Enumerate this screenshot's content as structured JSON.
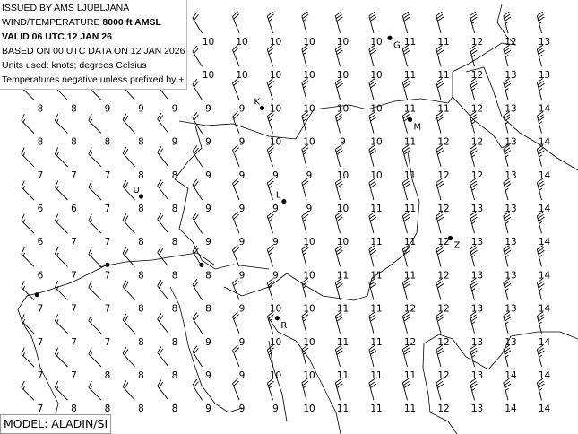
{
  "header": {
    "line1": "ISSUED BY AMS LJUBLJANA",
    "line2_prefix": "WIND/TEMPERATURE ",
    "line2_level": "8000 ft AMSL",
    "line3": "VALID 06 UTC 12 JAN 26",
    "line4": "BASED ON 00 UTC DATA ON 12 JAN 2026",
    "line5": "Units used: knots; degrees Celsius",
    "line6": "Temperatures negative unless prefixed by +"
  },
  "model_label": "MODEL: ALADIN/SI",
  "colors": {
    "ink": "#000000",
    "background": "#ffffff"
  },
  "temperature_grid": [
    [
      null,
      null,
      null,
      null,
      null,
      10,
      10,
      10,
      10,
      10,
      10,
      11,
      11,
      12,
      12,
      13
    ],
    [
      null,
      null,
      null,
      null,
      null,
      10,
      10,
      10,
      10,
      10,
      10,
      11,
      11,
      12,
      13,
      13
    ],
    [
      8,
      8,
      9,
      9,
      9,
      9,
      9,
      10,
      10,
      10,
      10,
      11,
      11,
      12,
      13,
      14
    ],
    [
      8,
      8,
      8,
      8,
      9,
      9,
      9,
      10,
      10,
      9,
      10,
      11,
      12,
      12,
      13,
      14
    ],
    [
      7,
      7,
      7,
      8,
      8,
      9,
      9,
      9,
      9,
      10,
      10,
      11,
      12,
      12,
      13,
      14
    ],
    [
      6,
      6,
      7,
      8,
      8,
      9,
      9,
      9,
      9,
      10,
      11,
      11,
      12,
      13,
      13,
      14
    ],
    [
      6,
      7,
      7,
      8,
      8,
      9,
      9,
      9,
      10,
      10,
      11,
      11,
      12,
      13,
      13,
      14
    ],
    [
      6,
      7,
      7,
      8,
      8,
      8,
      9,
      9,
      10,
      11,
      11,
      11,
      12,
      13,
      13,
      14
    ],
    [
      7,
      7,
      7,
      8,
      8,
      8,
      9,
      10,
      10,
      11,
      11,
      12,
      12,
      13,
      13,
      14
    ],
    [
      7,
      7,
      7,
      8,
      8,
      9,
      9,
      10,
      10,
      11,
      11,
      12,
      12,
      13,
      13,
      14
    ],
    [
      7,
      7,
      8,
      8,
      8,
      9,
      9,
      10,
      10,
      11,
      11,
      11,
      12,
      13,
      14,
      14
    ],
    [
      7,
      8,
      8,
      8,
      8,
      9,
      9,
      9,
      10,
      11,
      11,
      11,
      12,
      13,
      14,
      14
    ]
  ],
  "wind_by_column": {
    "direction_deg": [
      315,
      315,
      315,
      318,
      322,
      328,
      338,
      342,
      345,
      345,
      345,
      345,
      345,
      345,
      345,
      345
    ],
    "speed_kt": [
      15,
      15,
      15,
      20,
      20,
      20,
      20,
      25,
      25,
      30,
      30,
      30,
      30,
      35,
      35,
      35
    ]
  },
  "stations": [
    {
      "label": "G",
      "col": 10.4,
      "row": -0.1
    },
    {
      "label": "K",
      "col": 6.6,
      "row": 2.0
    },
    {
      "label": "M",
      "col": 11.0,
      "row": 2.35
    },
    {
      "label": "U",
      "col": 3.0,
      "row": 4.65
    },
    {
      "label": "L",
      "col": 7.25,
      "row": 4.8
    },
    {
      "label": "Z",
      "col": 12.2,
      "row": 5.9
    },
    {
      "label": "R",
      "col": 7.05,
      "row": 8.3
    },
    {
      "label": "",
      "col": 4.8,
      "row": 6.7
    },
    {
      "label": "",
      "col": 2.0,
      "row": 6.7
    },
    {
      "label": "",
      "col": -0.1,
      "row": 7.6
    }
  ]
}
